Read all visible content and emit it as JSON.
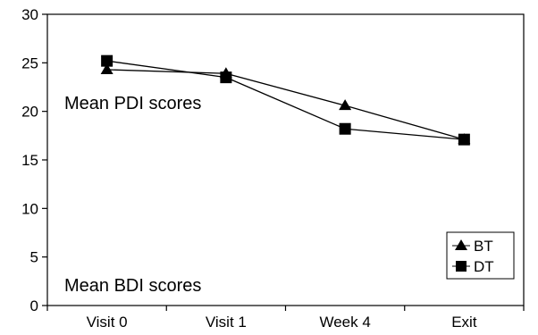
{
  "chart_data": {
    "type": "line",
    "categories": [
      "Visit 0",
      "Visit 1",
      "Week 4",
      "Exit"
    ],
    "ylim": [
      0,
      30
    ],
    "yticks": [
      0,
      5,
      10,
      15,
      20,
      25,
      30
    ],
    "grid": false,
    "legend_position": "bottom-right",
    "annotations": [
      "Mean PDI scores",
      "Mean BDI scores"
    ],
    "series": [
      {
        "name": "BT",
        "marker": "triangle",
        "values": [
          24.3,
          23.9,
          20.6,
          17.1
        ]
      },
      {
        "name": "DT",
        "marker": "square",
        "values": [
          25.2,
          23.5,
          18.2,
          17.1
        ]
      }
    ],
    "colors": {
      "line": "#000000",
      "background": "#ffffff"
    }
  }
}
